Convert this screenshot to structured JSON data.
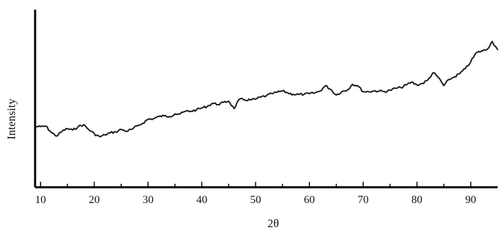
{
  "chart_data": {
    "type": "line",
    "title": "",
    "xlabel": "2θ",
    "ylabel": "Intensity",
    "xlim": [
      9,
      95
    ],
    "ylim": [
      0,
      100
    ],
    "xticks": [
      10,
      20,
      30,
      40,
      50,
      60,
      70,
      80,
      90
    ],
    "xminor_ticks": [
      15,
      25,
      35,
      45,
      55,
      65,
      75,
      85
    ],
    "show_yticks": false,
    "grid": false,
    "legend": "none",
    "line_color": "#1a1a1a",
    "series": [
      {
        "x": [
          9,
          10,
          11,
          12,
          13,
          14,
          15,
          16,
          17,
          18,
          19,
          20,
          21,
          22,
          23,
          24,
          25,
          26,
          27,
          28,
          29,
          30,
          31,
          32,
          33,
          34,
          35,
          36,
          37,
          38,
          39,
          40,
          41,
          42,
          43,
          44,
          45,
          46,
          47,
          48,
          49,
          50,
          51,
          52,
          53,
          54,
          55,
          56,
          57,
          58,
          59,
          60,
          61,
          62,
          63,
          64,
          65,
          66,
          67,
          68,
          69,
          70,
          71,
          72,
          73,
          74,
          75,
          76,
          77,
          78,
          79,
          80,
          81,
          82,
          83,
          84,
          85,
          86,
          87,
          88,
          89,
          90,
          91,
          92,
          93,
          94,
          95
        ],
        "y": [
          34.1,
          34.1,
          34.4,
          30.9,
          28.8,
          31.5,
          33,
          32.2,
          34.1,
          35.2,
          32.4,
          30.1,
          28.4,
          29.5,
          30.7,
          31.1,
          32.6,
          31.5,
          32.6,
          34.5,
          36,
          38.3,
          38.6,
          39.8,
          40.2,
          39.8,
          41.3,
          41.3,
          42.8,
          42.8,
          43.6,
          44.7,
          45.5,
          47.3,
          46.6,
          47.7,
          48.5,
          44.3,
          49.6,
          49.2,
          49.2,
          49.6,
          50.8,
          51.5,
          52.7,
          53.5,
          54.2,
          53.1,
          52.3,
          52.3,
          52.3,
          52.7,
          53.1,
          54.2,
          57.2,
          55,
          51.9,
          53.8,
          54.6,
          58,
          57.2,
          53.8,
          53.8,
          54.2,
          54.2,
          53.8,
          54.6,
          55.7,
          56.1,
          57.6,
          59.2,
          57.6,
          58.4,
          60.3,
          64.5,
          61.8,
          57.2,
          60.7,
          62.2,
          64.1,
          66.8,
          70.6,
          75.6,
          76.7,
          77.5,
          82.1,
          77.5
        ]
      }
    ]
  }
}
